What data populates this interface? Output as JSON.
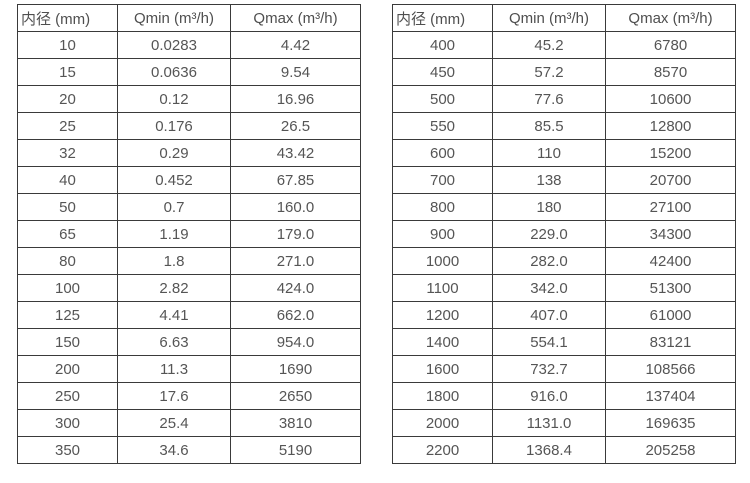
{
  "columns": [
    "内径 (mm)",
    "Qmin (m³/h)",
    "Qmax (m³/h)"
  ],
  "tables": [
    {
      "name": "small-diameters",
      "rows": [
        [
          "10",
          "0.0283",
          "4.42"
        ],
        [
          "15",
          "0.0636",
          "9.54"
        ],
        [
          "20",
          "0.12",
          "16.96"
        ],
        [
          "25",
          "0.176",
          "26.5"
        ],
        [
          "32",
          "0.29",
          "43.42"
        ],
        [
          "40",
          "0.452",
          "67.85"
        ],
        [
          "50",
          "0.7",
          "160.0"
        ],
        [
          "65",
          "1.19",
          "179.0"
        ],
        [
          "80",
          "1.8",
          "271.0"
        ],
        [
          "100",
          "2.82",
          "424.0"
        ],
        [
          "125",
          "4.41",
          "662.0"
        ],
        [
          "150",
          "6.63",
          "954.0"
        ],
        [
          "200",
          "11.3",
          "1690"
        ],
        [
          "250",
          "17.6",
          "2650"
        ],
        [
          "300",
          "25.4",
          "3810"
        ],
        [
          "350",
          "34.6",
          "5190"
        ]
      ]
    },
    {
      "name": "large-diameters",
      "rows": [
        [
          "400",
          "45.2",
          "6780"
        ],
        [
          "450",
          "57.2",
          "8570"
        ],
        [
          "500",
          "77.6",
          "10600"
        ],
        [
          "550",
          "85.5",
          "12800"
        ],
        [
          "600",
          "110",
          "15200"
        ],
        [
          "700",
          "138",
          "20700"
        ],
        [
          "800",
          "180",
          "27100"
        ],
        [
          "900",
          "229.0",
          "34300"
        ],
        [
          "1000",
          "282.0",
          "42400"
        ],
        [
          "1100",
          "342.0",
          "51300"
        ],
        [
          "1200",
          "407.0",
          "61000"
        ],
        [
          "1400",
          "554.1",
          "83121"
        ],
        [
          "1600",
          "732.7",
          "108566"
        ],
        [
          "1800",
          "916.0",
          "137404"
        ],
        [
          "2000",
          "1131.0",
          "169635"
        ],
        [
          "2200",
          "1368.4",
          "205258"
        ]
      ]
    }
  ],
  "colors": {
    "border": "#3a3a3a",
    "text": "#555555",
    "background": "#ffffff"
  }
}
